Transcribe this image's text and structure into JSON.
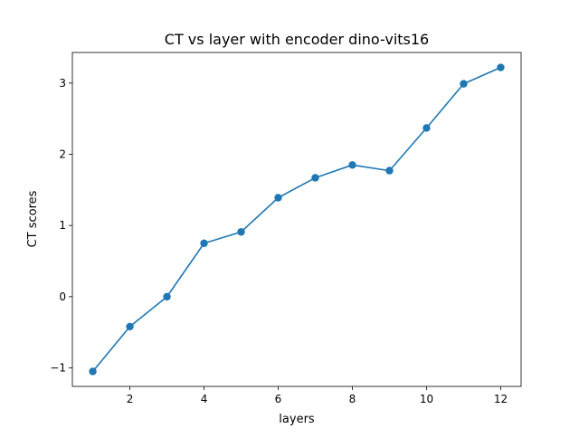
{
  "chart_data": {
    "type": "line",
    "title": "CT vs layer with encoder dino-vits16",
    "xlabel": "layers",
    "ylabel": "CT scores",
    "x": [
      1,
      2,
      3,
      4,
      5,
      6,
      7,
      8,
      9,
      10,
      11,
      12
    ],
    "series": [
      {
        "values": [
          -1.05,
          -0.42,
          0.0,
          0.75,
          0.91,
          1.39,
          1.67,
          1.85,
          1.77,
          2.37,
          2.99,
          3.22
        ],
        "color": "#1f77b4",
        "marker": "circle"
      }
    ],
    "xlim": [
      0.45,
      12.55
    ],
    "ylim": [
      -1.26,
      3.43
    ],
    "xticks": [
      2,
      4,
      6,
      8,
      10,
      12
    ],
    "xtick_labels": [
      "2",
      "4",
      "6",
      "8",
      "10",
      "12"
    ],
    "yticks": [
      -1,
      0,
      1,
      2,
      3
    ],
    "ytick_labels": [
      "−1",
      "0",
      "1",
      "2",
      "3"
    ],
    "grid": false,
    "legend": "none"
  }
}
